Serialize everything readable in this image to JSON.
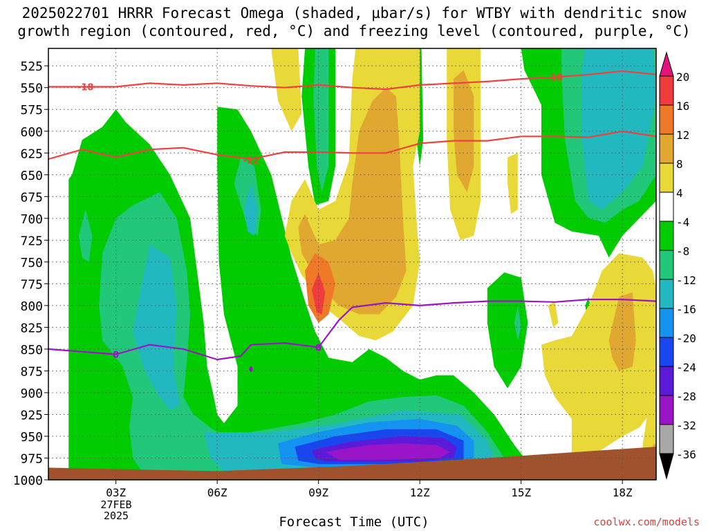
{
  "chart_data": {
    "type": "heatmap",
    "title": "2025022701 HRRR Forecast Omega (shaded, µbar/s) for WTBY with dendritic snow\ngrowth region (contoured, red, °C) and freezing level (contoured, purple, °C)",
    "xlabel": "Forecast Time (UTC)",
    "ylabel": "",
    "y_scale": "pressure (mb), reversed",
    "ylim": [
      1000,
      505
    ],
    "xlim_hours": [
      1,
      19
    ],
    "x_ticks": [
      {
        "hour": 3,
        "label": "03Z"
      },
      {
        "hour": 6,
        "label": "06Z"
      },
      {
        "hour": 9,
        "label": "09Z"
      },
      {
        "hour": 12,
        "label": "12Z"
      },
      {
        "hour": 15,
        "label": "15Z"
      },
      {
        "hour": 18,
        "label": "18Z"
      }
    ],
    "date_label": [
      "27FEB",
      "2025"
    ],
    "y_ticks": [
      525,
      550,
      575,
      600,
      625,
      650,
      675,
      700,
      725,
      750,
      775,
      800,
      825,
      850,
      875,
      900,
      925,
      950,
      975,
      1000
    ],
    "grid": true,
    "colorbar": {
      "levels": [
        20,
        16,
        12,
        8,
        4,
        -4,
        -8,
        -12,
        -16,
        -20,
        -24,
        -28,
        -32,
        -36
      ],
      "colors": [
        "#e0147a",
        "#f03c3c",
        "#ee7a28",
        "#e0a830",
        "#e8d838",
        "#ffffff",
        "#00cc00",
        "#22c87a",
        "#22b8c0",
        "#1494f0",
        "#1a46f0",
        "#5a1ad8",
        "#9a14c8",
        "#a8a8a8",
        "#000000"
      ]
    },
    "fill_colors": {
      "green": "#00cc00",
      "seagreen": "#22c87a",
      "cyan": "#22b8c0",
      "blue": "#1494f0",
      "deepblue": "#1a46f0",
      "indigo": "#5a1ad8",
      "purple": "#9a14c8",
      "yellow": "#e8d838",
      "gold": "#e0a830",
      "orange": "#ee7a28",
      "red": "#f03c3c",
      "ground": "#a0522d"
    },
    "series": [
      {
        "name": "-18",
        "color": "#f04040",
        "points": [
          [
            1,
            549
          ],
          [
            2,
            549
          ],
          [
            3,
            549
          ],
          [
            4,
            545
          ],
          [
            5,
            547
          ],
          [
            6,
            545
          ],
          [
            7,
            548
          ],
          [
            8,
            550
          ],
          [
            9,
            547
          ],
          [
            10,
            550
          ],
          [
            11,
            552
          ],
          [
            12,
            547
          ],
          [
            13,
            545
          ],
          [
            14,
            543
          ],
          [
            15,
            540
          ],
          [
            16,
            538
          ],
          [
            17,
            535
          ],
          [
            18,
            531
          ],
          [
            19,
            535
          ]
        ]
      },
      {
        "name": "-12",
        "color": "#f04040",
        "points": [
          [
            1,
            632
          ],
          [
            2,
            621
          ],
          [
            3,
            630
          ],
          [
            4,
            621
          ],
          [
            5,
            619
          ],
          [
            6,
            627
          ],
          [
            7,
            632
          ],
          [
            8,
            624
          ],
          [
            9,
            624
          ],
          [
            10,
            625
          ],
          [
            11,
            625
          ],
          [
            12,
            614
          ],
          [
            13,
            611
          ],
          [
            14,
            611
          ],
          [
            15,
            606
          ],
          [
            16,
            606
          ],
          [
            17,
            607
          ],
          [
            18,
            600
          ],
          [
            19,
            606
          ]
        ]
      },
      {
        "name": "0",
        "color": "#9a14c8",
        "points": [
          [
            1,
            850
          ],
          [
            2,
            853
          ],
          [
            3,
            856
          ],
          [
            4,
            845
          ],
          [
            5,
            850
          ],
          [
            6,
            862
          ],
          [
            6.7,
            858
          ],
          [
            7,
            845
          ],
          [
            8,
            843
          ],
          [
            9,
            848
          ],
          [
            9.6,
            817
          ],
          [
            10,
            802
          ],
          [
            11,
            797
          ],
          [
            12,
            800
          ],
          [
            13,
            797
          ],
          [
            14,
            795
          ],
          [
            15,
            795
          ],
          [
            16,
            796
          ],
          [
            17,
            793
          ],
          [
            18,
            793
          ],
          [
            19,
            795
          ]
        ]
      }
    ],
    "contour_labels": [
      {
        "text": "-18",
        "hour": 2.1,
        "p": 549
      },
      {
        "text": "-18",
        "hour": 16.0,
        "p": 538
      },
      {
        "text": "-12",
        "hour": 7.0,
        "p": 633
      },
      {
        "text": "0",
        "hour": 3.0,
        "p": 856
      },
      {
        "text": "0",
        "hour": 9.0,
        "p": 848
      }
    ]
  },
  "credit": "coolwx.com/models"
}
